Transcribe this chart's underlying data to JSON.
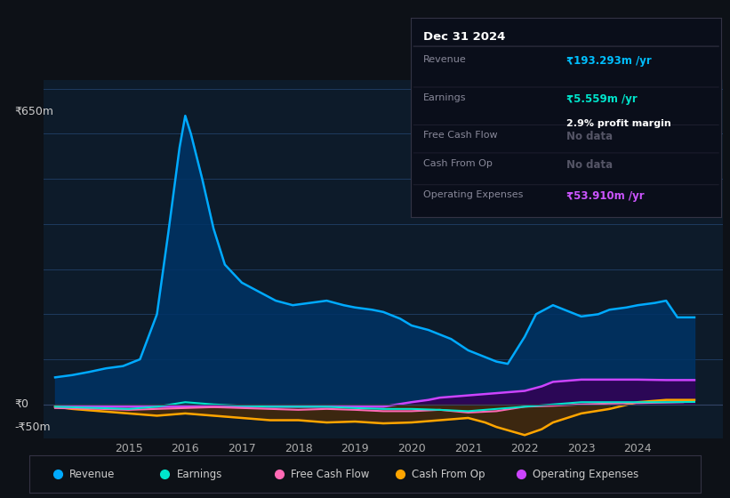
{
  "bg_color": "#0d1117",
  "plot_bg_color": "#0d1b2a",
  "grid_color": "#1e3a5f",
  "title_box": {
    "date": "Dec 31 2024",
    "rows": [
      {
        "label": "Revenue",
        "value": "₹193.293m /yr",
        "value_color": "#00bfff",
        "subvalue": null
      },
      {
        "label": "Earnings",
        "value": "₹5.559m /yr",
        "value_color": "#00e5cc",
        "subvalue": "2.9% profit margin"
      },
      {
        "label": "Free Cash Flow",
        "value": "No data",
        "value_color": "#555566",
        "subvalue": null
      },
      {
        "label": "Cash From Op",
        "value": "No data",
        "value_color": "#555566",
        "subvalue": null
      },
      {
        "label": "Operating Expenses",
        "value": "₹53.910m /yr",
        "value_color": "#cc55ff",
        "subvalue": null
      }
    ]
  },
  "y_label_top": "₹650m",
  "y_label_zero": "₹0",
  "y_label_neg": "-₹50m",
  "ylim": [
    -75,
    720
  ],
  "xlim": [
    2013.5,
    2025.5
  ],
  "x_ticks": [
    2015,
    2016,
    2017,
    2018,
    2019,
    2020,
    2021,
    2022,
    2023,
    2024
  ],
  "series": {
    "revenue": {
      "color": "#00aaff",
      "fill_color": "#003366",
      "label": "Revenue",
      "data_x": [
        2013.7,
        2014.0,
        2014.3,
        2014.6,
        2014.9,
        2015.2,
        2015.5,
        2015.7,
        2015.9,
        2016.0,
        2016.1,
        2016.3,
        2016.5,
        2016.7,
        2017.0,
        2017.3,
        2017.6,
        2017.9,
        2018.2,
        2018.5,
        2018.8,
        2019.0,
        2019.3,
        2019.5,
        2019.8,
        2020.0,
        2020.3,
        2020.5,
        2020.7,
        2021.0,
        2021.3,
        2021.5,
        2021.7,
        2022.0,
        2022.2,
        2022.5,
        2022.7,
        2023.0,
        2023.3,
        2023.5,
        2023.8,
        2024.0,
        2024.3,
        2024.5,
        2024.7,
        2025.0
      ],
      "data_y": [
        60,
        65,
        72,
        80,
        85,
        100,
        200,
        380,
        570,
        640,
        600,
        500,
        390,
        310,
        270,
        250,
        230,
        220,
        225,
        230,
        220,
        215,
        210,
        205,
        190,
        175,
        165,
        155,
        145,
        120,
        105,
        95,
        90,
        150,
        200,
        220,
        210,
        195,
        200,
        210,
        215,
        220,
        225,
        230,
        193,
        193
      ]
    },
    "earnings": {
      "color": "#00e5cc",
      "label": "Earnings",
      "data_x": [
        2013.7,
        2014.5,
        2015.0,
        2015.5,
        2016.0,
        2016.5,
        2017.0,
        2017.5,
        2018.0,
        2018.5,
        2019.0,
        2019.5,
        2020.0,
        2020.5,
        2021.0,
        2021.5,
        2022.0,
        2022.5,
        2023.0,
        2023.5,
        2024.0,
        2024.5,
        2025.0
      ],
      "data_y": [
        -5,
        -8,
        -10,
        -5,
        5,
        0,
        -3,
        -5,
        -5,
        -5,
        -8,
        -10,
        -10,
        -12,
        -15,
        -10,
        -5,
        0,
        5,
        5,
        5,
        5,
        5.5
      ]
    },
    "free_cash_flow": {
      "color": "#ff69b4",
      "label": "Free Cash Flow",
      "data_x": [
        2013.7,
        2014.5,
        2015.0,
        2015.5,
        2016.0,
        2016.5,
        2017.0,
        2017.5,
        2018.0,
        2018.5,
        2019.0,
        2019.5,
        2020.0,
        2020.5,
        2021.0,
        2021.5,
        2022.0,
        2022.5,
        2023.0,
        2023.5,
        2024.0,
        2024.8
      ],
      "data_y": [
        -8,
        -10,
        -12,
        -10,
        -8,
        -6,
        -8,
        -10,
        -12,
        -10,
        -12,
        -15,
        -15,
        -12,
        -18,
        -15,
        -5,
        -3,
        0,
        2,
        3,
        5
      ]
    },
    "cash_from_op": {
      "color": "#ffa500",
      "label": "Cash From Op",
      "data_x": [
        2013.7,
        2014.0,
        2014.5,
        2015.0,
        2015.5,
        2016.0,
        2016.5,
        2017.0,
        2017.5,
        2018.0,
        2018.5,
        2019.0,
        2019.5,
        2020.0,
        2020.5,
        2021.0,
        2021.3,
        2021.5,
        2022.0,
        2022.3,
        2022.5,
        2023.0,
        2023.5,
        2024.0,
        2024.5,
        2025.0
      ],
      "data_y": [
        -5,
        -10,
        -15,
        -20,
        -25,
        -20,
        -25,
        -30,
        -35,
        -35,
        -40,
        -38,
        -42,
        -40,
        -35,
        -30,
        -40,
        -50,
        -68,
        -55,
        -40,
        -20,
        -10,
        5,
        10,
        10
      ]
    },
    "operating_expenses": {
      "color": "#cc44ff",
      "fill_color": "#330055",
      "label": "Operating Expenses",
      "data_x": [
        2013.7,
        2014.5,
        2015.0,
        2015.5,
        2016.0,
        2016.5,
        2017.0,
        2017.5,
        2018.0,
        2019.0,
        2019.5,
        2020.0,
        2020.3,
        2020.5,
        2021.0,
        2021.5,
        2022.0,
        2022.3,
        2022.5,
        2023.0,
        2023.5,
        2024.0,
        2024.5,
        2025.0
      ],
      "data_y": [
        -5,
        -5,
        -5,
        -5,
        -5,
        -5,
        -5,
        -5,
        -5,
        -5,
        -5,
        5,
        10,
        15,
        20,
        25,
        30,
        40,
        50,
        55,
        55,
        55,
        54,
        54
      ]
    }
  },
  "legend_items": [
    {
      "label": "Revenue",
      "color": "#00aaff"
    },
    {
      "label": "Earnings",
      "color": "#00e5cc"
    },
    {
      "label": "Free Cash Flow",
      "color": "#ff69b4"
    },
    {
      "label": "Cash From Op",
      "color": "#ffa500"
    },
    {
      "label": "Operating Expenses",
      "color": "#cc44ff"
    }
  ]
}
